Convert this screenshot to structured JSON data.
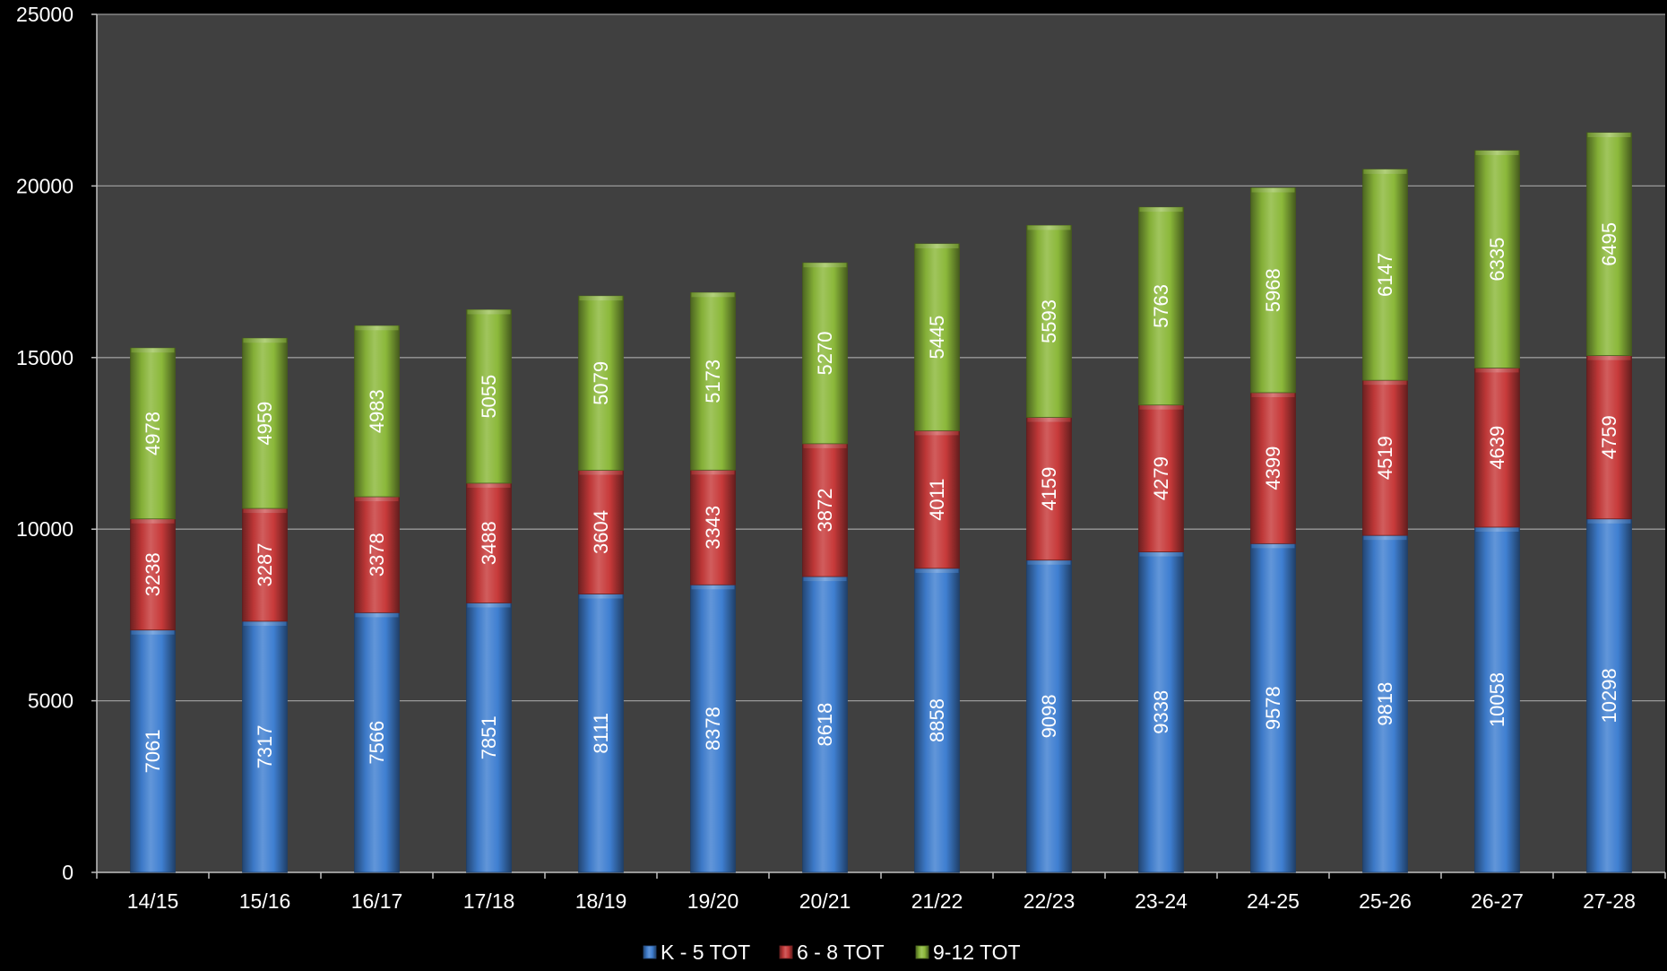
{
  "chart_data": {
    "type": "bar",
    "stacked": true,
    "title": "",
    "xlabel": "",
    "ylabel": "",
    "ylim": [
      0,
      25000
    ],
    "yticks": [
      0,
      5000,
      10000,
      15000,
      20000,
      25000
    ],
    "grid": true,
    "legend": "bottom",
    "categories": [
      "14/15",
      "15/16",
      "16/17",
      "17/18",
      "18/19",
      "19/20",
      "20/21",
      "21/22",
      "22/23",
      "23-24",
      "24-25",
      "25-26",
      "26-27",
      "27-28"
    ],
    "series": [
      {
        "name": "K - 5 TOT",
        "color": "#3f7fd1",
        "values": [
          7061,
          7317,
          7566,
          7851,
          8111,
          8378,
          8618,
          8858,
          9098,
          9338,
          9578,
          9818,
          10058,
          10298
        ]
      },
      {
        "name": "6 - 8 TOT",
        "color": "#c73a3a",
        "values": [
          3238,
          3287,
          3378,
          3488,
          3604,
          3343,
          3872,
          4011,
          4159,
          4279,
          4399,
          4519,
          4639,
          4759
        ]
      },
      {
        "name": "9-12 TOT",
        "color": "#8bb83a",
        "values": [
          4978,
          4959,
          4983,
          5055,
          5079,
          5173,
          5270,
          5445,
          5593,
          5763,
          5968,
          6147,
          6335,
          6495
        ]
      }
    ]
  }
}
